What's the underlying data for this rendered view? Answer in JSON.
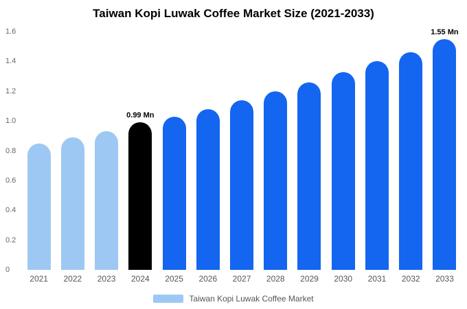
{
  "title": "Taiwan Kopi Luwak Coffee Market Size (2021-2033)",
  "legend": {
    "label": "Taiwan Kopi Luwak Coffee Market",
    "swatch_color": "#9dc8f3"
  },
  "colors": {
    "past": "#9dc8f3",
    "current": "#000000",
    "forecast": "#1465f0"
  },
  "chart_data": {
    "type": "bar",
    "title": "Taiwan Kopi Luwak Coffee Market Size (2021-2033)",
    "categories": [
      "2021",
      "2022",
      "2023",
      "2024",
      "2025",
      "2026",
      "2027",
      "2028",
      "2029",
      "2030",
      "2031",
      "2032",
      "2033"
    ],
    "values": [
      0.85,
      0.89,
      0.93,
      0.99,
      1.03,
      1.08,
      1.14,
      1.2,
      1.26,
      1.33,
      1.4,
      1.46,
      1.55
    ],
    "bar_color_keys": [
      "past",
      "past",
      "past",
      "current",
      "forecast",
      "forecast",
      "forecast",
      "forecast",
      "forecast",
      "forecast",
      "forecast",
      "forecast",
      "forecast"
    ],
    "annotations": [
      {
        "index": 3,
        "text": "0.99 Mn"
      },
      {
        "index": 12,
        "text": "1.55 Mn"
      }
    ],
    "xlabel": "",
    "ylabel": "",
    "ylim": [
      0,
      1.6
    ],
    "ytick_labels": [
      "0",
      "0.2",
      "0.4",
      "0.6",
      "0.8",
      "1.0",
      "1.2",
      "1.4",
      "1.6"
    ],
    "grid": false,
    "legend_position": "bottom"
  }
}
